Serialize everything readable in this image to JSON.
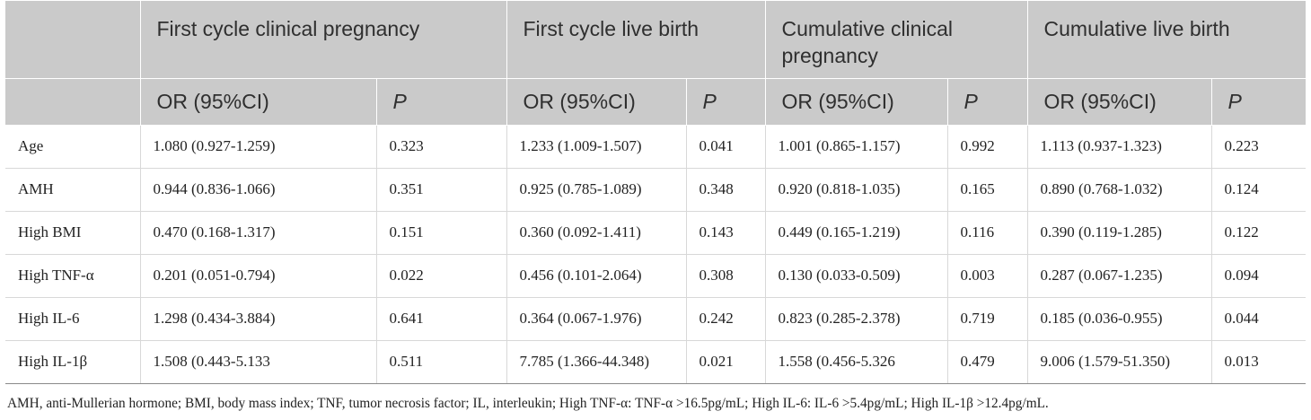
{
  "table": {
    "group_headers": [
      "",
      "First cycle clinical pregnancy",
      "First cycle live birth",
      "Cumulative clinical pregnancy",
      "Cumulative live birth"
    ],
    "sub_headers": {
      "or_label": "OR (95%CI)",
      "p_label": "P"
    },
    "rows": [
      {
        "label": "Age",
        "values": [
          "1.080 (0.927-1.259)",
          "0.323",
          "1.233 (1.009-1.507)",
          "0.041",
          "1.001 (0.865-1.157)",
          "0.992",
          "1.113 (0.937-1.323)",
          "0.223"
        ]
      },
      {
        "label": "AMH",
        "values": [
          "0.944 (0.836-1.066)",
          "0.351",
          "0.925 (0.785-1.089)",
          "0.348",
          "0.920 (0.818-1.035)",
          "0.165",
          "0.890 (0.768-1.032)",
          "0.124"
        ]
      },
      {
        "label": "High BMI",
        "values": [
          "0.470 (0.168-1.317)",
          "0.151",
          "0.360 (0.092-1.411)",
          "0.143",
          "0.449 (0.165-1.219)",
          "0.116",
          "0.390 (0.119-1.285)",
          "0.122"
        ]
      },
      {
        "label": "High TNF-α",
        "values": [
          "0.201 (0.051-0.794)",
          "0.022",
          "0.456 (0.101-2.064)",
          "0.308",
          "0.130 (0.033-0.509)",
          "0.003",
          "0.287 (0.067-1.235)",
          "0.094"
        ]
      },
      {
        "label": "High IL-6",
        "values": [
          "1.298 (0.434-3.884)",
          "0.641",
          "0.364 (0.067-1.976)",
          "0.242",
          "0.823 (0.285-2.378)",
          "0.719",
          "0.185 (0.036-0.955)",
          "0.044"
        ]
      },
      {
        "label": "High IL-1β",
        "values": [
          "1.508 (0.443-5.133",
          "0.511",
          "7.785 (1.366-44.348)",
          "0.021",
          "1.558 (0.456-5.326",
          "0.479",
          "9.006 (1.579-51.350)",
          "0.013"
        ]
      }
    ]
  },
  "footnote": "AMH, anti-Mullerian hormone; BMI, body mass index; TNF, tumor necrosis factor; IL, interleukin; High TNF-α: TNF-α >16.5pg/mL; High IL-6: IL-6 >5.4pg/mL; High IL-1β >12.4pg/mL."
}
